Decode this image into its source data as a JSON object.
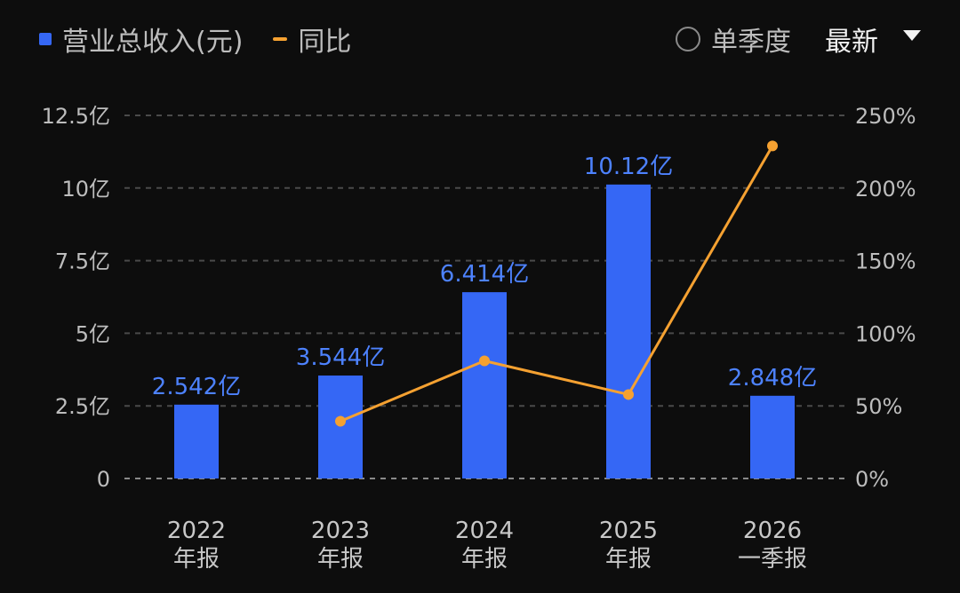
{
  "legend": {
    "bar_label": "营业总收入(元)",
    "line_label": "同比"
  },
  "controls": {
    "single_quarter_label": "单季度",
    "latest_label": "最新"
  },
  "colors": {
    "bar": "#3567f5",
    "line": "#f5a131",
    "label": "#4d82ff",
    "grid": "#4a4a4a"
  },
  "icons": [
    "radio-icon",
    "caret-down-icon"
  ],
  "chart_data": {
    "type": "bar",
    "categories": [
      [
        "2022",
        "年报"
      ],
      [
        "2023",
        "年报"
      ],
      [
        "2024",
        "年报"
      ],
      [
        "2025",
        "年报"
      ],
      [
        "2026",
        "一季报"
      ]
    ],
    "series": [
      {
        "name": "营业总收入(元)",
        "type": "bar",
        "axis": "left",
        "values": [
          2.542,
          3.544,
          6.414,
          10.12,
          2.848
        ],
        "labels": [
          "2.542亿",
          "3.544亿",
          "6.414亿",
          "10.12亿",
          "2.848亿"
        ]
      },
      {
        "name": "同比",
        "type": "line",
        "axis": "right",
        "values": [
          null,
          39.4,
          81.0,
          57.8,
          229.0
        ]
      }
    ],
    "y_left": {
      "ticks": [
        0,
        2.5,
        5,
        7.5,
        10,
        12.5
      ],
      "tick_labels": [
        "0",
        "2.5亿",
        "5亿",
        "7.5亿",
        "10亿",
        "12.5亿"
      ],
      "range": [
        0,
        12.5
      ]
    },
    "y_right": {
      "ticks": [
        0,
        50,
        100,
        150,
        200,
        250
      ],
      "tick_labels": [
        "0%",
        "50%",
        "100%",
        "150%",
        "200%",
        "250%"
      ],
      "range": [
        0,
        250
      ]
    },
    "grid": true,
    "legend_position": "top-left"
  }
}
